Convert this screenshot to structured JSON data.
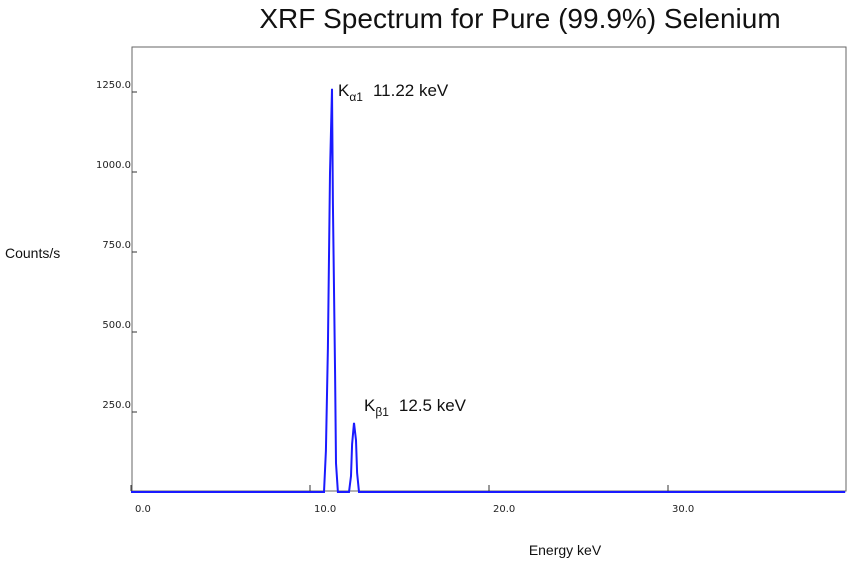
{
  "chart_data": {
    "type": "line",
    "title": "XRF Spectrum for Pure (99.9%) Selenium",
    "xlabel": "Energy keV",
    "ylabel": "Counts/s",
    "xlim": [
      0,
      39.9
    ],
    "ylim": [
      0,
      1250
    ],
    "xticks": [
      "0.0",
      "10.0",
      "20.0",
      "30.0"
    ],
    "yticks": [
      "250.0",
      "500.0",
      "750.0",
      "1000.0",
      "1250.0"
    ],
    "grid": false,
    "line_color": "#1a1aff",
    "series": [
      {
        "x": [
          0,
          10.78,
          10.89,
          11.0,
          11.12,
          11.23,
          11.28,
          11.4,
          11.45,
          11.56,
          12.18,
          12.29,
          12.35,
          12.46,
          12.57,
          12.63,
          12.74,
          39.9
        ],
        "y": [
          0,
          0,
          128,
          450,
          997,
          1260,
          903,
          366,
          90,
          0,
          0,
          50,
          150,
          216,
          162,
          60,
          0,
          0
        ]
      }
    ],
    "annotations": [
      {
        "symbol": "K",
        "subscript": "α1",
        "text": "11.22 keV",
        "x": 11.22,
        "y": 1260
      },
      {
        "symbol": "K",
        "subscript": "β1",
        "text": "12.5 keV",
        "x": 12.5,
        "y": 216
      }
    ]
  }
}
